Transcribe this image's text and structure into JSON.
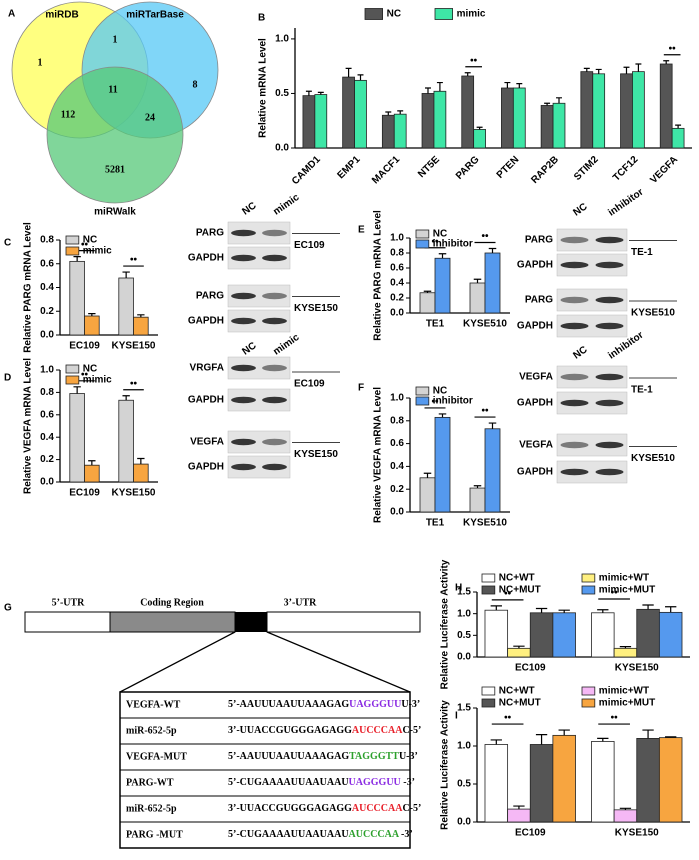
{
  "panel_labels": [
    "A",
    "B",
    "C",
    "D",
    "E",
    "F",
    "G",
    "H",
    "I"
  ],
  "venn": {
    "sets": [
      "miRDB",
      "miRTarBase",
      "miRWalk"
    ],
    "colors": [
      "#ffff55",
      "#55c8f5",
      "#55c878"
    ],
    "regions": [
      1,
      1,
      8,
      11,
      112,
      24,
      5281
    ]
  },
  "chart_data": [
    {
      "type": "bar",
      "ylabel": "Relative mRNA Level",
      "categories": [
        "CAMD1",
        "EMP1",
        "MACF1",
        "NT5E",
        "PARG",
        "PTEN",
        "RAP2B",
        "STIM2",
        "TCF12",
        "VEGFA"
      ],
      "series": [
        {
          "name": "NC",
          "color": "#555555",
          "values": [
            0.48,
            0.65,
            0.3,
            0.5,
            0.66,
            0.55,
            0.39,
            0.7,
            0.68,
            0.77
          ],
          "errors": [
            0.04,
            0.08,
            0.03,
            0.05,
            0.03,
            0.05,
            0.02,
            0.03,
            0.06,
            0.03
          ]
        },
        {
          "name": "mimic",
          "color": "#3ee6a6",
          "values": [
            0.49,
            0.62,
            0.31,
            0.52,
            0.17,
            0.55,
            0.41,
            0.68,
            0.7,
            0.18
          ],
          "errors": [
            0.02,
            0.05,
            0.03,
            0.08,
            0.02,
            0.04,
            0.05,
            0.04,
            0.07,
            0.03
          ]
        }
      ],
      "significance": [
        null,
        null,
        null,
        null,
        "••",
        null,
        null,
        null,
        null,
        "••"
      ],
      "ylim": [
        0,
        1.1
      ],
      "yticks": [
        {
          "value": 0,
          "label": "0.0"
        },
        0.5,
        {
          "value": 1,
          "label": "1.0"
        }
      ],
      "legend": "top"
    },
    {
      "type": "bar",
      "ylabel": "Relative PARG mRNA Level",
      "categories": [
        "EC109",
        "KYSE150"
      ],
      "series": [
        {
          "name": "NC",
          "color": "#d3d3d3",
          "values": [
            0.62,
            0.48
          ],
          "errors": [
            0.04,
            0.05
          ]
        },
        {
          "name": "mimic",
          "color": "#f7a540",
          "values": [
            0.16,
            0.15
          ],
          "errors": [
            0.02,
            0.02
          ]
        }
      ],
      "significance": [
        "••",
        "••"
      ],
      "ylim": [
        0,
        0.8
      ],
      "yticks": [
        {
          "value": 0,
          "label": "0.0"
        },
        0.2,
        0.4,
        0.6,
        0.8
      ],
      "legend": "top-left"
    },
    {
      "type": "bar",
      "ylabel": "Relative VEGFA mRNA Level",
      "categories": [
        "EC109",
        "KYSE150"
      ],
      "series": [
        {
          "name": "NC",
          "color": "#d3d3d3",
          "values": [
            0.79,
            0.73
          ],
          "errors": [
            0.06,
            0.04
          ]
        },
        {
          "name": "mimic",
          "color": "#f7a540",
          "values": [
            0.15,
            0.16
          ],
          "errors": [
            0.04,
            0.05
          ]
        }
      ],
      "significance": [
        "••",
        "••"
      ],
      "ylim": [
        0,
        1.0
      ],
      "yticks": [
        {
          "value": 0,
          "label": "0.0"
        },
        0.2,
        0.4,
        0.6,
        0.8,
        {
          "value": 1,
          "label": "1.0"
        }
      ],
      "legend": "top-left"
    },
    {
      "type": "bar",
      "ylabel": "Relative PARG mRNA Level",
      "categories": [
        "TE1",
        "KYSE510"
      ],
      "series": [
        {
          "name": "NC",
          "color": "#d3d3d3",
          "values": [
            0.27,
            0.4
          ],
          "errors": [
            0.02,
            0.05
          ]
        },
        {
          "name": "inhibitor",
          "color": "#5599ee",
          "values": [
            0.73,
            0.8
          ],
          "errors": [
            0.06,
            0.06
          ]
        }
      ],
      "significance": [
        "••",
        "••"
      ],
      "ylim": [
        0,
        1.0
      ],
      "yticks": [
        {
          "value": 0,
          "label": "0.0"
        },
        0.2,
        0.4,
        0.6,
        0.8,
        {
          "value": 1,
          "label": "1.0"
        }
      ],
      "legend": "top-left"
    },
    {
      "type": "bar",
      "ylabel": "Relative VEGFA mRNA Level",
      "categories": [
        "TE1",
        "KYSE510"
      ],
      "series": [
        {
          "name": "NC",
          "color": "#d3d3d3",
          "values": [
            0.3,
            0.21
          ],
          "errors": [
            0.04,
            0.02
          ]
        },
        {
          "name": "inhibitor",
          "color": "#5599ee",
          "values": [
            0.83,
            0.73
          ],
          "errors": [
            0.03,
            0.05
          ]
        }
      ],
      "significance": [
        "••",
        "••"
      ],
      "ylim": [
        0,
        1.0
      ],
      "yticks": [
        {
          "value": 0,
          "label": "0.0"
        },
        0.2,
        0.4,
        0.6,
        0.8,
        {
          "value": 1,
          "label": "1.0"
        }
      ],
      "legend": "top-left"
    },
    {
      "type": "bar",
      "ylabel": "Relative Luciferase Activity",
      "categories": [
        "EC109",
        "KYSE150"
      ],
      "series": [
        {
          "name": "NC+WT",
          "color": "#ffffff",
          "values": [
            1.08,
            1.02
          ],
          "errors": [
            0.1,
            0.07
          ]
        },
        {
          "name": "mimic+WT",
          "color": "#fff080",
          "values": [
            0.2,
            0.2
          ],
          "errors": [
            0.05,
            0.04
          ]
        },
        {
          "name": "NC+MUT",
          "color": "#555555",
          "values": [
            1.02,
            1.1
          ],
          "errors": [
            0.1,
            0.1
          ]
        },
        {
          "name": "mimic+MUT",
          "color": "#5599ee",
          "values": [
            1.02,
            1.03
          ],
          "errors": [
            0.06,
            0.13
          ]
        }
      ],
      "significance": [
        "••",
        "••"
      ],
      "ylim": [
        0,
        1.5
      ],
      "yticks": [
        {
          "value": 0,
          "label": "0.0"
        },
        0.5,
        {
          "value": 1,
          "label": "1.0"
        },
        1.5
      ],
      "legend": "top"
    },
    {
      "type": "bar",
      "ylabel": "Relative Luciferase Activity",
      "categories": [
        "EC109",
        "KYSE150"
      ],
      "series": [
        {
          "name": "NC+WT",
          "color": "#ffffff",
          "values": [
            1.02,
            1.06
          ],
          "errors": [
            0.06,
            0.04
          ]
        },
        {
          "name": "mimic+WT",
          "color": "#f5b8f5",
          "values": [
            0.17,
            0.16
          ],
          "errors": [
            0.04,
            0.02
          ]
        },
        {
          "name": "NC+MUT",
          "color": "#555555",
          "values": [
            1.02,
            1.1
          ],
          "errors": [
            0.13,
            0.11
          ]
        },
        {
          "name": "mimic+MUT",
          "color": "#f7a540",
          "values": [
            1.14,
            1.11
          ],
          "errors": [
            0.07,
            0.01
          ]
        }
      ],
      "significance": [
        "••",
        "••"
      ],
      "ylim": [
        0,
        1.5
      ],
      "yticks": [
        {
          "value": 0,
          "label": "0.0"
        },
        0.5,
        {
          "value": 1,
          "label": "1.0"
        },
        1.5
      ],
      "legend": "top"
    }
  ],
  "blots": [
    {
      "lanes": [
        "NC",
        "mimic"
      ],
      "groups": [
        {
          "bands": [
            "PARG",
            "GAPDH"
          ],
          "cell": "EC109"
        },
        {
          "bands": [
            "PARG",
            "GAPDH"
          ],
          "cell": "KYSE150"
        }
      ]
    },
    {
      "lanes": [
        "NC",
        "mimic"
      ],
      "groups": [
        {
          "bands": [
            "VRGFA",
            "GAPDH"
          ],
          "cell": "EC109"
        },
        {
          "bands": [
            "VEGFA",
            "GAPDH"
          ],
          "cell": "KYSE150"
        }
      ]
    },
    {
      "lanes": [
        "NC",
        "inhibitor"
      ],
      "groups": [
        {
          "bands": [
            "PARG",
            "GAPDH"
          ],
          "cell": "TE-1"
        },
        {
          "bands": [
            "PARG",
            "GAPDH"
          ],
          "cell": "KYSE510"
        }
      ]
    },
    {
      "lanes": [
        "NC",
        "inhibitor"
      ],
      "groups": [
        {
          "bands": [
            "VEGFA",
            "GAPDH"
          ],
          "cell": "TE-1"
        },
        {
          "bands": [
            "VEGFA",
            "GAPDH"
          ],
          "cell": "KYSE510"
        }
      ]
    }
  ],
  "gene_map": {
    "regions": [
      "5’-UTR",
      "Coding Region",
      "3’-UTR"
    ],
    "rows": [
      {
        "name": "VEGFA-WT",
        "parts": [
          "5’-AAUUUAAUUAAAGAG",
          "UAGGGUU",
          "U-3’"
        ],
        "color": "#8a2be2"
      },
      {
        "name": "miR-652-5p",
        "parts": [
          "3’-UUACCGUGGGAGAGG",
          "AUCCCAA",
          "C-5’"
        ],
        "color": "#e8202a"
      },
      {
        "name": "VEGFA-MUT",
        "parts": [
          "5’-AAUUUAAUUAAAGAG",
          "TAGGGTT",
          "U-3’"
        ],
        "color": "#2ca02c"
      },
      {
        "name": "PARG-WT",
        "parts": [
          "5’-CUGAAAAUUAAUAAU",
          "UAGGGUU",
          " -3’"
        ],
        "color": "#8a2be2"
      },
      {
        "name": "miR-652-5p",
        "parts": [
          "3’-UUACCGUGGGAGAGG",
          "AUCCCAA",
          "C-5’"
        ],
        "color": "#e8202a"
      },
      {
        "name": "PARG -MUT",
        "parts": [
          "5’-CUGAAAAUUAAUAAU",
          "AUCCCAA",
          " -3’"
        ],
        "color": "#2ca02c"
      }
    ]
  }
}
